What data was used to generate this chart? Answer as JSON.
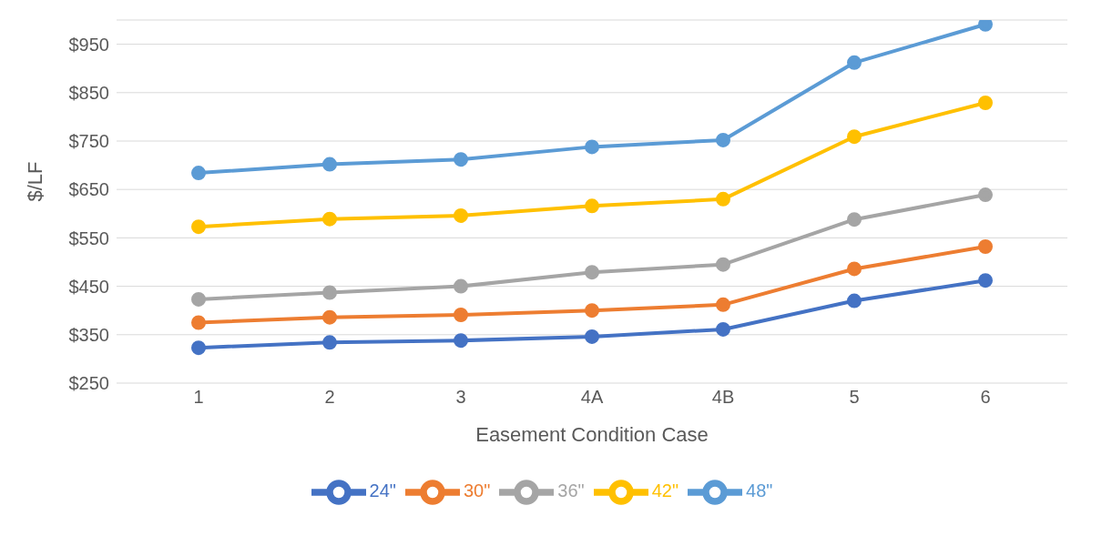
{
  "chart_data": {
    "type": "line",
    "xlabel": "Easement Condition Case",
    "ylabel": "$/LF",
    "categories": [
      "1",
      "2",
      "3",
      "4A",
      "4B",
      "5",
      "6"
    ],
    "series": [
      {
        "name": "24\"",
        "color": "#4472c4",
        "values": [
          323,
          334,
          338,
          346,
          361,
          420,
          462
        ]
      },
      {
        "name": "30\"",
        "color": "#ed7d31",
        "values": [
          375,
          386,
          391,
          400,
          412,
          486,
          532
        ]
      },
      {
        "name": "36\"",
        "color": "#a5a5a5",
        "values": [
          423,
          437,
          450,
          479,
          495,
          588,
          639
        ]
      },
      {
        "name": "42\"",
        "color": "#ffc000",
        "values": [
          573,
          589,
          596,
          616,
          630,
          759,
          829
        ]
      },
      {
        "name": "48\"",
        "color": "#5b9bd5",
        "values": [
          684,
          702,
          712,
          738,
          752,
          912,
          991
        ]
      }
    ],
    "ylim": [
      250,
      1000
    ],
    "yticks": [
      {
        "value": 250,
        "label": "$250"
      },
      {
        "value": 350,
        "label": "$350"
      },
      {
        "value": 450,
        "label": "$450"
      },
      {
        "value": 550,
        "label": "$550"
      },
      {
        "value": 650,
        "label": "$650"
      },
      {
        "value": 750,
        "label": "$750"
      },
      {
        "value": 850,
        "label": "$850"
      },
      {
        "value": 950,
        "label": "$950"
      }
    ],
    "grid": "y",
    "legend": "bottom",
    "marker": "circle",
    "line_style": "solid"
  }
}
